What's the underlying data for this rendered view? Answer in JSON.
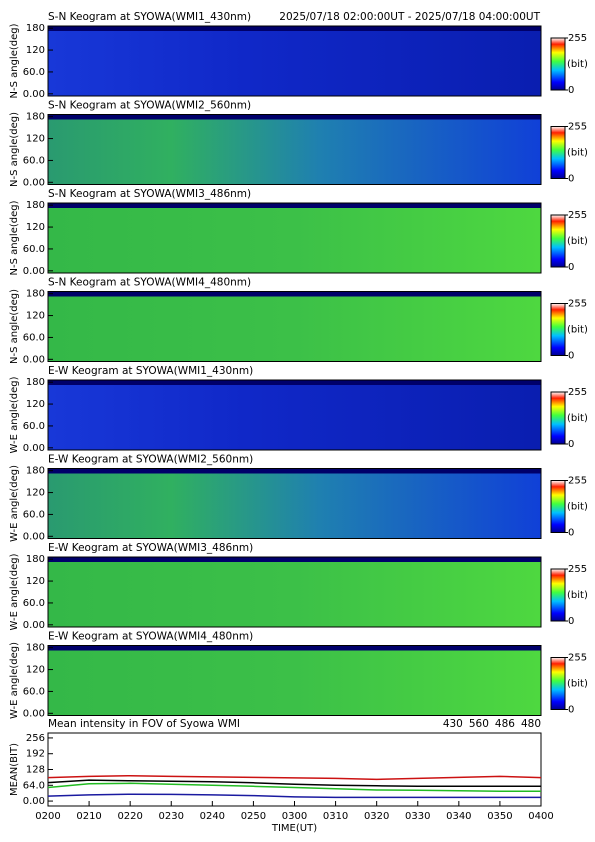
{
  "chart_data": [
    {
      "type": "heatmap",
      "title": "S-N Keogram at SYOWA(WMI1_430nm)",
      "subtitle": "2025/07/18 02:00:00UT - 2025/07/18 04:00:00UT",
      "ylabel": "N-S angle(deg)",
      "ylim": [
        -6,
        186
      ],
      "yticks": [
        {
          "value": 0,
          "label": "0.00"
        },
        {
          "value": 60,
          "label": "60.0"
        },
        120,
        180
      ],
      "zlim": [
        0,
        255
      ],
      "zticks": [
        0,
        255
      ],
      "zlabel": "(bit)"
    },
    {
      "type": "heatmap",
      "title": "S-N Keogram at SYOWA(WMI2_560nm)",
      "ylabel": "N-S angle(deg)",
      "ylim": [
        -6,
        186
      ],
      "yticks": [
        {
          "value": 0,
          "label": "0.00"
        },
        {
          "value": 60,
          "label": "60.0"
        },
        120,
        180
      ],
      "zlim": [
        0,
        255
      ],
      "zticks": [
        0,
        255
      ],
      "zlabel": "(bit)"
    },
    {
      "type": "heatmap",
      "title": "S-N Keogram at SYOWA(WMI3_486nm)",
      "ylabel": "N-S angle(deg)",
      "ylim": [
        -6,
        186
      ],
      "yticks": [
        {
          "value": 0,
          "label": "0.00"
        },
        {
          "value": 60,
          "label": "60.0"
        },
        120,
        180
      ],
      "zlim": [
        0,
        255
      ],
      "zticks": [
        0,
        255
      ],
      "zlabel": "(bit)"
    },
    {
      "type": "heatmap",
      "title": "S-N Keogram at SYOWA(WMI4_480nm)",
      "ylabel": "N-S angle(deg)",
      "ylim": [
        -6,
        186
      ],
      "yticks": [
        {
          "value": 0,
          "label": "0.00"
        },
        {
          "value": 60,
          "label": "60.0"
        },
        120,
        180
      ],
      "zlim": [
        0,
        255
      ],
      "zticks": [
        0,
        255
      ],
      "zlabel": "(bit)"
    },
    {
      "type": "heatmap",
      "title": "E-W Keogram at SYOWA(WMI1_430nm)",
      "ylabel": "W-E angle(deg)",
      "ylim": [
        -6,
        186
      ],
      "yticks": [
        {
          "value": 0,
          "label": "0.00"
        },
        {
          "value": 60,
          "label": "60.0"
        },
        120,
        180
      ],
      "zlim": [
        0,
        255
      ],
      "zticks": [
        0,
        255
      ],
      "zlabel": "(bit)"
    },
    {
      "type": "heatmap",
      "title": "E-W Keogram at SYOWA(WMI2_560nm)",
      "ylabel": "W-E angle(deg)",
      "ylim": [
        -6,
        186
      ],
      "yticks": [
        {
          "value": 0,
          "label": "0.00"
        },
        {
          "value": 60,
          "label": "60.0"
        },
        120,
        180
      ],
      "zlim": [
        0,
        255
      ],
      "zticks": [
        0,
        255
      ],
      "zlabel": "(bit)"
    },
    {
      "type": "heatmap",
      "title": "E-W Keogram at SYOWA(WMI3_486nm)",
      "ylabel": "W-E angle(deg)",
      "ylim": [
        -6,
        186
      ],
      "yticks": [
        {
          "value": 0,
          "label": "0.00"
        },
        {
          "value": 60,
          "label": "60.0"
        },
        120,
        180
      ],
      "zlim": [
        0,
        255
      ],
      "zticks": [
        0,
        255
      ],
      "zlabel": "(bit)"
    },
    {
      "type": "heatmap",
      "title": "E-W Keogram at SYOWA(WMI4_480nm)",
      "ylabel": "W-E angle(deg)",
      "ylim": [
        -6,
        186
      ],
      "yticks": [
        {
          "value": 0,
          "label": "0.00"
        },
        {
          "value": 60,
          "label": "60.0"
        },
        120,
        180
      ],
      "zlim": [
        0,
        255
      ],
      "zticks": [
        0,
        255
      ],
      "zlabel": "(bit)"
    },
    {
      "type": "line",
      "title": "Mean intensity in FOV of Syowa WMI",
      "ylabel": "MEAN(BIT)",
      "xlabel": "TIME(UT)",
      "x": [
        "0200",
        "0210",
        "0220",
        "0230",
        "0240",
        "0250",
        "0300",
        "0310",
        "0320",
        "0330",
        "0340",
        "0350",
        "0400"
      ],
      "ylim": [
        -20,
        276
      ],
      "yticks": [
        {
          "value": 0,
          "label": "0.00"
        },
        {
          "value": 64,
          "label": "64.0"
        },
        128,
        192,
        256
      ],
      "legend": "top-right",
      "series": [
        {
          "name": "430",
          "color": "#1a1aa0",
          "values": [
            20,
            25,
            28,
            27,
            25,
            22,
            17,
            15,
            15,
            15,
            15,
            15,
            15
          ]
        },
        {
          "name": "560",
          "color": "#22bb22",
          "values": [
            55,
            70,
            72,
            68,
            64,
            60,
            55,
            50,
            45,
            44,
            42,
            40,
            40
          ]
        },
        {
          "name": "486",
          "color": "#cc1111",
          "values": [
            95,
            100,
            103,
            100,
            98,
            96,
            94,
            92,
            88,
            92,
            96,
            100,
            95
          ]
        },
        {
          "name": "480",
          "color": "#000000",
          "values": [
            75,
            85,
            82,
            80,
            78,
            74,
            68,
            64,
            62,
            60,
            60,
            60,
            60
          ]
        }
      ]
    }
  ]
}
